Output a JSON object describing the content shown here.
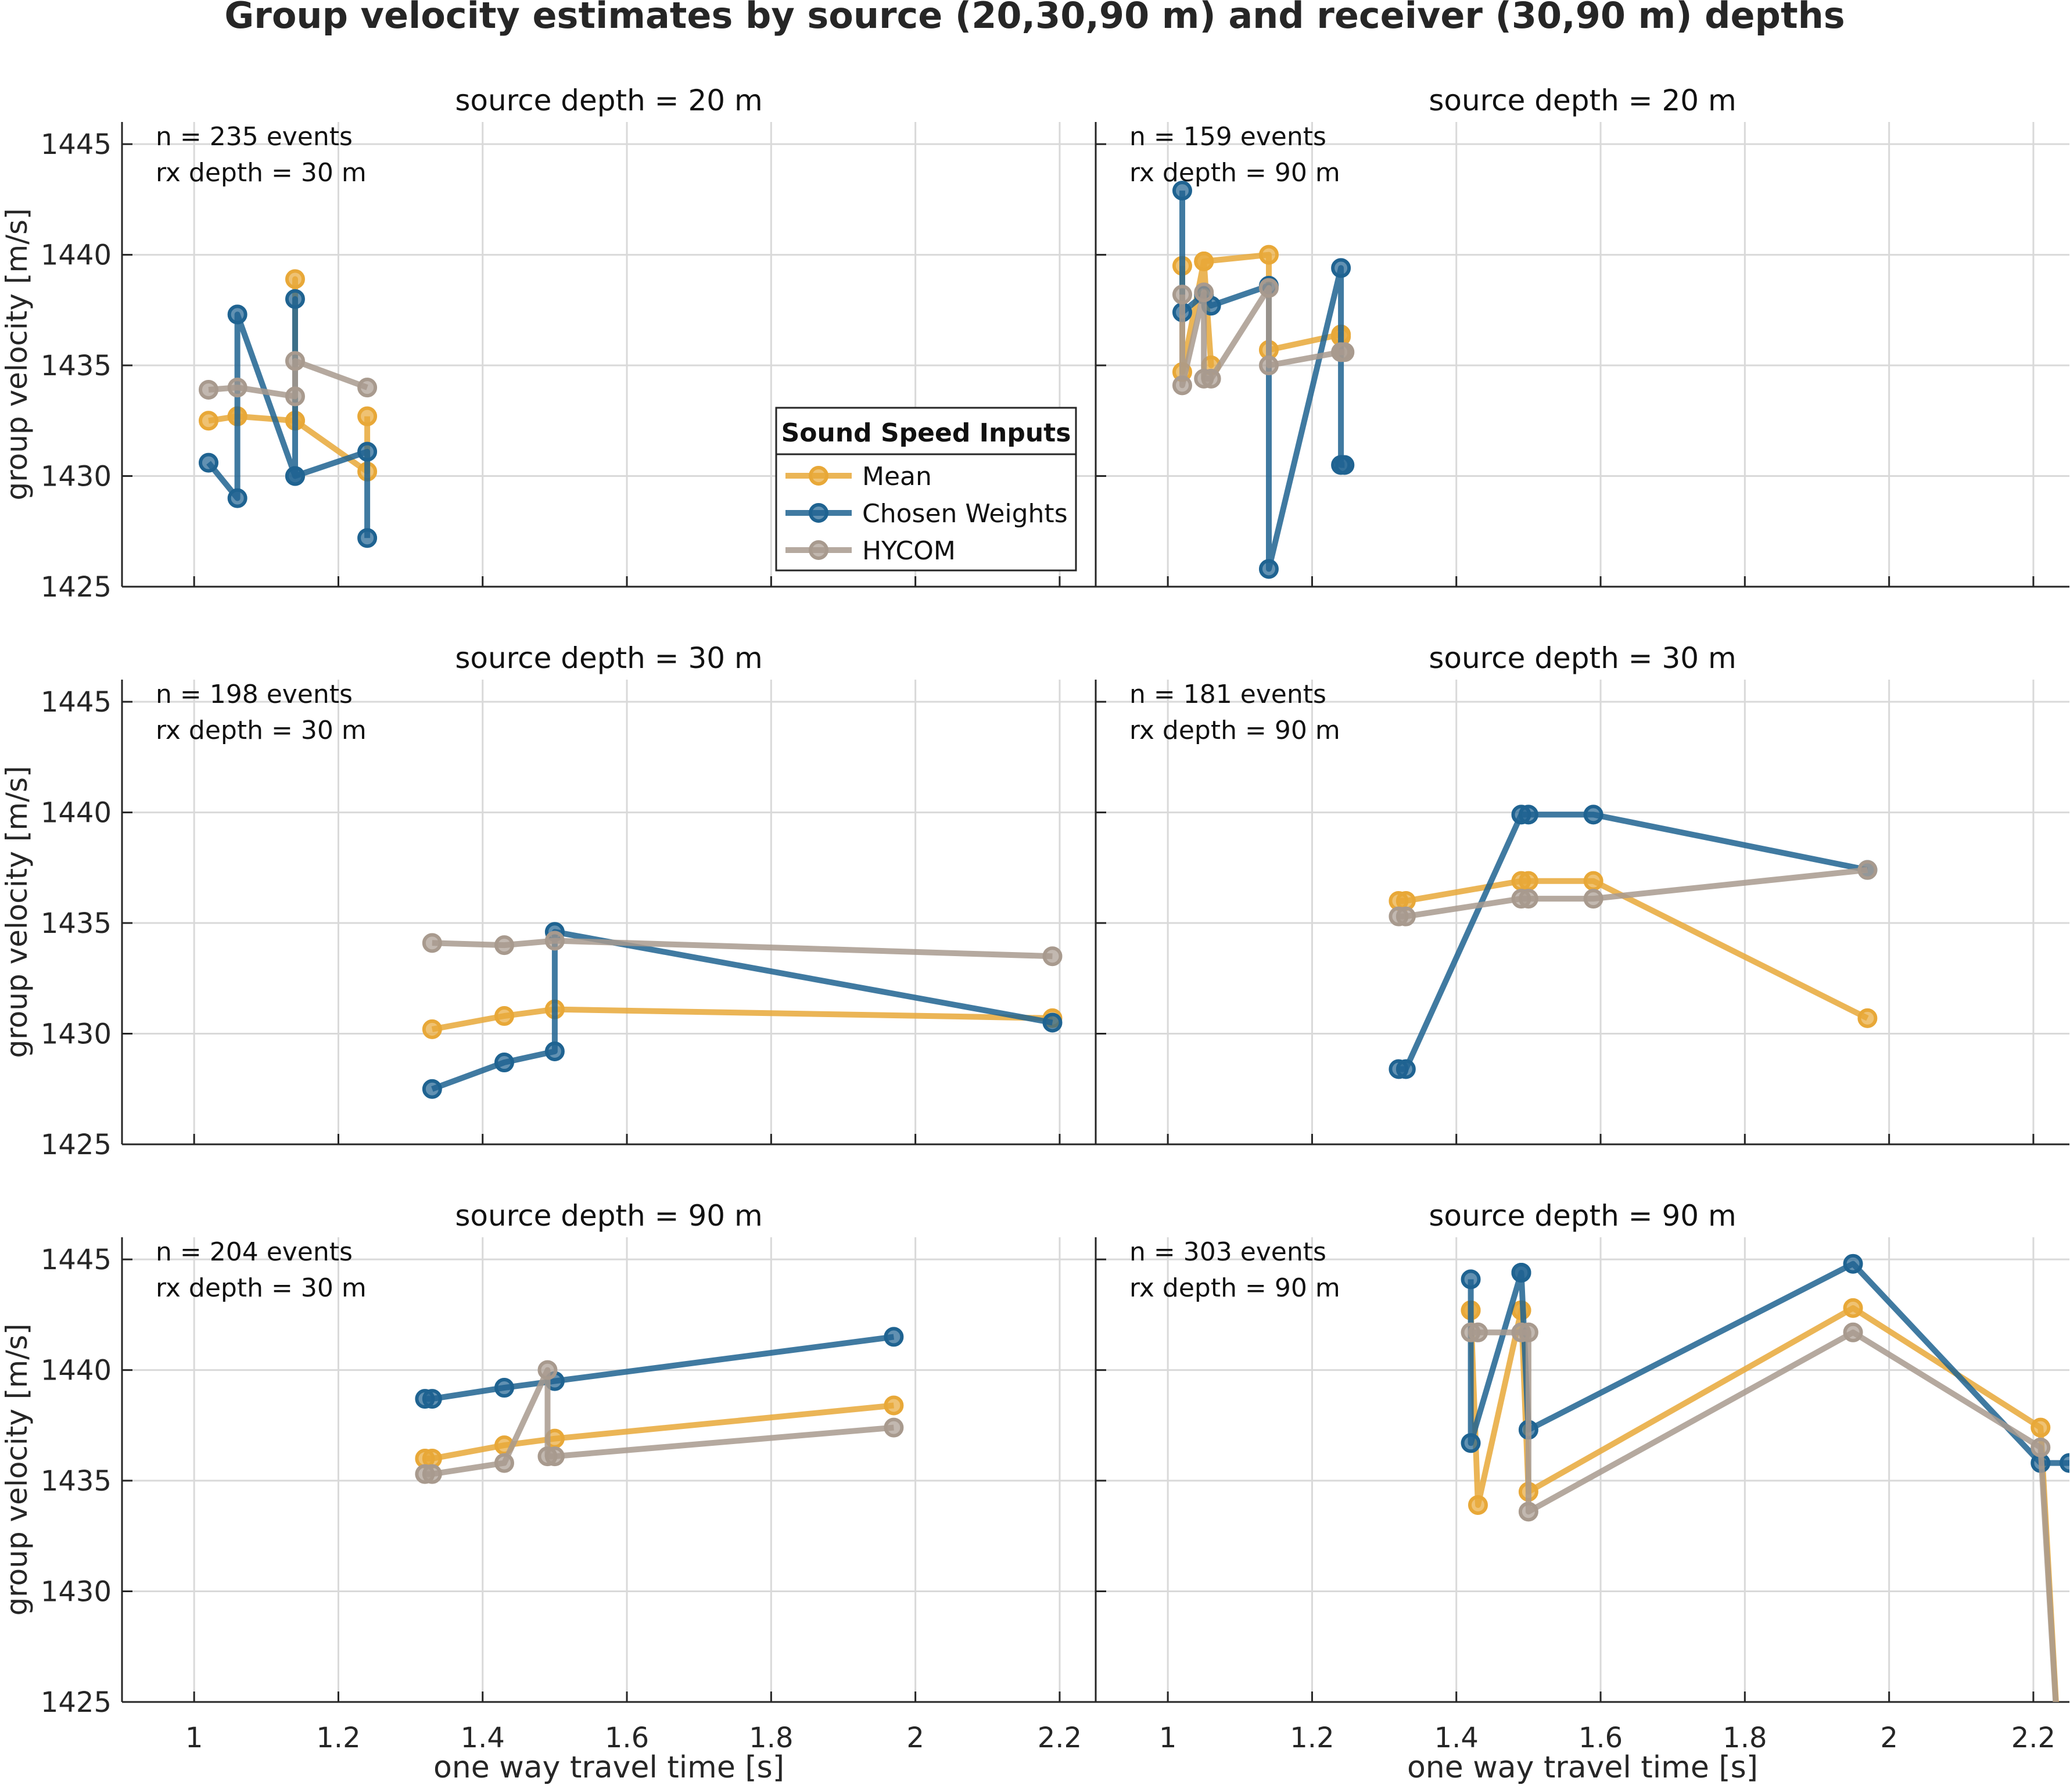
{
  "title": "Group velocity estimates by source (20,30,90 m) and receiver (30,90 m) depths",
  "colors": {
    "mean": "#e8a838",
    "chosen": "#1f6391",
    "hycom": "#a89a8e",
    "grid": "#d9d9d9",
    "axis": "#262626"
  },
  "legend": {
    "title": "Sound Speed Inputs",
    "placement": "inside top-left subplot, lower right",
    "entries": [
      "Mean",
      "Chosen Weights",
      "HYCOM"
    ]
  },
  "chart_data": [
    {
      "type": "line",
      "title": "source depth = 20 m",
      "annotation": [
        "n = 235 events",
        "rx depth = 30 m"
      ],
      "xlabel": "",
      "ylabel": "group velocity [m/s]",
      "xlim": [
        0.9,
        2.25
      ],
      "ylim": [
        1425,
        1446
      ],
      "xticks": [
        "1",
        "1.2",
        "1.4",
        "1.6",
        "1.8",
        "2",
        "2.2"
      ],
      "yticks": [
        "1425",
        "1430",
        "1435",
        "1440",
        "1445"
      ],
      "grid": true,
      "series": [
        {
          "name": "Mean",
          "x": [
            1.02,
            1.06,
            1.06,
            1.14,
            1.14,
            1.14,
            1.24,
            1.24
          ],
          "y": [
            1432.5,
            1432.7,
            1432.7,
            1432.5,
            1438.9,
            1432.5,
            1430.2,
            1432.7
          ]
        },
        {
          "name": "Chosen Weights",
          "x": [
            1.02,
            1.06,
            1.06,
            1.14,
            1.14,
            1.14,
            1.24,
            1.24
          ],
          "y": [
            1430.6,
            1429.0,
            1437.3,
            1430.0,
            1438.0,
            1430.0,
            1431.1,
            1427.2
          ]
        },
        {
          "name": "HYCOM",
          "x": [
            1.02,
            1.06,
            1.14,
            1.14,
            1.24
          ],
          "y": [
            1433.9,
            1434.0,
            1433.6,
            1435.2,
            1434.0
          ]
        }
      ]
    },
    {
      "type": "line",
      "title": "source depth = 20 m",
      "annotation": [
        "n = 159 events",
        "rx depth = 90 m"
      ],
      "xlabel": "",
      "ylabel": "",
      "xlim": [
        0.9,
        2.25
      ],
      "ylim": [
        1425,
        1446
      ],
      "xticks": [
        "1",
        "1.2",
        "1.4",
        "1.6",
        "1.8",
        "2",
        "2.2"
      ],
      "yticks": [
        "1425",
        "1430",
        "1435",
        "1440",
        "1445"
      ],
      "grid": true,
      "series": [
        {
          "name": "Mean",
          "x": [
            1.02,
            1.02,
            1.05,
            1.06,
            1.05,
            1.14,
            1.14,
            1.24,
            1.24
          ],
          "y": [
            1439.5,
            1434.7,
            1439.7,
            1435.0,
            1439.7,
            1440.0,
            1435.7,
            1436.4,
            1436.3
          ]
        },
        {
          "name": "Chosen Weights",
          "x": [
            1.02,
            1.02,
            1.05,
            1.06,
            1.14,
            1.14,
            1.24,
            1.24,
            1.245
          ],
          "y": [
            1442.9,
            1437.4,
            1438.2,
            1437.7,
            1438.6,
            1425.8,
            1439.4,
            1430.5,
            1430.5
          ]
        },
        {
          "name": "HYCOM",
          "x": [
            1.02,
            1.02,
            1.05,
            1.05,
            1.06,
            1.14,
            1.14,
            1.24,
            1.245
          ],
          "y": [
            1438.2,
            1434.1,
            1438.3,
            1434.4,
            1434.4,
            1438.5,
            1435.0,
            1435.6,
            1435.6
          ]
        }
      ]
    },
    {
      "type": "line",
      "title": "source depth = 30 m",
      "annotation": [
        "n = 198 events",
        "rx depth = 30 m"
      ],
      "xlabel": "",
      "ylabel": "group velocity [m/s]",
      "xlim": [
        0.9,
        2.25
      ],
      "ylim": [
        1425,
        1446
      ],
      "xticks": [
        "1",
        "1.2",
        "1.4",
        "1.6",
        "1.8",
        "2",
        "2.2"
      ],
      "yticks": [
        "1425",
        "1430",
        "1435",
        "1440",
        "1445"
      ],
      "grid": true,
      "series": [
        {
          "name": "Mean",
          "x": [
            1.33,
            1.43,
            1.5,
            2.19
          ],
          "y": [
            1430.2,
            1430.8,
            1431.1,
            1430.7
          ]
        },
        {
          "name": "Chosen Weights",
          "x": [
            1.33,
            1.43,
            1.5,
            1.5,
            2.19
          ],
          "y": [
            1427.5,
            1428.7,
            1429.2,
            1434.6,
            1430.5
          ]
        },
        {
          "name": "HYCOM",
          "x": [
            1.33,
            1.43,
            1.5,
            2.19
          ],
          "y": [
            1434.1,
            1434.0,
            1434.2,
            1433.5
          ]
        }
      ]
    },
    {
      "type": "line",
      "title": "source depth = 30 m",
      "annotation": [
        "n = 181 events",
        "rx depth = 90 m"
      ],
      "xlabel": "",
      "ylabel": "",
      "xlim": [
        0.9,
        2.25
      ],
      "ylim": [
        1425,
        1446
      ],
      "xticks": [
        "1",
        "1.2",
        "1.4",
        "1.6",
        "1.8",
        "2",
        "2.2"
      ],
      "yticks": [
        "1425",
        "1430",
        "1435",
        "1440",
        "1445"
      ],
      "grid": true,
      "series": [
        {
          "name": "Mean",
          "x": [
            1.32,
            1.33,
            1.49,
            1.5,
            1.59,
            1.97
          ],
          "y": [
            1436.0,
            1436.0,
            1436.9,
            1436.9,
            1436.9,
            1430.7
          ]
        },
        {
          "name": "Chosen Weights",
          "x": [
            1.32,
            1.33,
            1.49,
            1.5,
            1.59,
            1.97
          ],
          "y": [
            1428.4,
            1428.4,
            1439.9,
            1439.9,
            1439.9,
            1437.4
          ]
        },
        {
          "name": "HYCOM",
          "x": [
            1.32,
            1.33,
            1.49,
            1.5,
            1.59,
            1.97
          ],
          "y": [
            1435.3,
            1435.3,
            1436.1,
            1436.1,
            1436.1,
            1437.4
          ]
        }
      ]
    },
    {
      "type": "line",
      "title": "source depth = 90 m",
      "annotation": [
        "n = 204 events",
        "rx depth = 30 m"
      ],
      "xlabel": "one way travel time [s]",
      "ylabel": "group velocity [m/s]",
      "xlim": [
        0.9,
        2.25
      ],
      "ylim": [
        1425,
        1446
      ],
      "xticks": [
        "1",
        "1.2",
        "1.4",
        "1.6",
        "1.8",
        "2",
        "2.2"
      ],
      "yticks": [
        "1425",
        "1430",
        "1435",
        "1440",
        "1445"
      ],
      "grid": true,
      "series": [
        {
          "name": "Mean",
          "x": [
            1.32,
            1.33,
            1.43,
            1.5,
            1.97
          ],
          "y": [
            1436.0,
            1436.0,
            1436.6,
            1436.9,
            1438.4
          ]
        },
        {
          "name": "Chosen Weights",
          "x": [
            1.32,
            1.33,
            1.43,
            1.5,
            1.97
          ],
          "y": [
            1438.7,
            1438.7,
            1439.2,
            1439.5,
            1441.5
          ]
        },
        {
          "name": "HYCOM",
          "x": [
            1.32,
            1.33,
            1.43,
            1.49,
            1.49,
            1.5,
            1.97
          ],
          "y": [
            1435.3,
            1435.3,
            1435.8,
            1440.0,
            1436.1,
            1436.1,
            1437.4
          ]
        }
      ]
    },
    {
      "type": "line",
      "title": "source depth = 90 m",
      "annotation": [
        "n = 303 events",
        "rx depth = 90 m"
      ],
      "xlabel": "one way travel time [s]",
      "ylabel": "",
      "xlim": [
        0.9,
        2.25
      ],
      "ylim": [
        1425,
        1446
      ],
      "xticks": [
        "1",
        "1.2",
        "1.4",
        "1.6",
        "1.8",
        "2",
        "2.2"
      ],
      "yticks": [
        "1425",
        "1430",
        "1435",
        "1440",
        "1445"
      ],
      "grid": true,
      "series": [
        {
          "name": "Mean",
          "x": [
            1.42,
            1.42,
            1.43,
            1.49,
            1.49,
            1.5,
            1.95,
            2.21,
            2.24
          ],
          "y": [
            1442.7,
            1442.7,
            1433.9,
            1442.7,
            1442.7,
            1434.5,
            1442.8,
            1437.4,
            1420.0
          ]
        },
        {
          "name": "Chosen Weights",
          "x": [
            1.42,
            1.42,
            1.49,
            1.49,
            1.5,
            1.95,
            2.21,
            2.25
          ],
          "y": [
            1444.1,
            1436.7,
            1444.4,
            1444.4,
            1437.3,
            1444.8,
            1435.8,
            1435.8
          ]
        },
        {
          "name": "HYCOM",
          "x": [
            1.42,
            1.43,
            1.49,
            1.5,
            1.5,
            1.95,
            2.21,
            2.24
          ],
          "y": [
            1441.7,
            1441.7,
            1441.7,
            1441.7,
            1433.6,
            1441.7,
            1436.5,
            1420.0
          ]
        }
      ]
    }
  ]
}
